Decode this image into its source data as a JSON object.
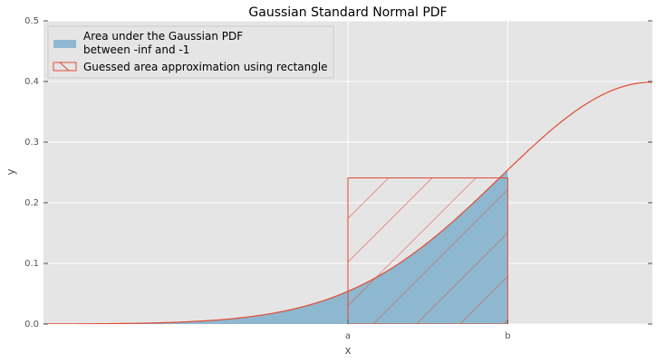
{
  "chart_data": {
    "type": "area",
    "title": "Gaussian Standard Normal PDF",
    "xlabel": "x",
    "ylabel": "y",
    "xlim": [
      -4,
      0
    ],
    "ylim": [
      0,
      0.5
    ],
    "yticks": [
      "0.0",
      "0.1",
      "0.2",
      "0.3",
      "0.4",
      "0.5"
    ],
    "xticks": [
      {
        "value": -2.0,
        "label": "a"
      },
      {
        "value": -0.95,
        "label": "b"
      }
    ],
    "grid": true,
    "legend_position": "top-left",
    "series": [
      {
        "name": "",
        "kind": "line",
        "function": "standard_normal_pdf",
        "x_range": [
          -4,
          0
        ],
        "color": "#e24a33"
      },
      {
        "name": "Area under the Gaussian PDF\nbetween -inf and -1",
        "kind": "fill",
        "fill_between": [
          -4,
          -0.95
        ],
        "color": "#8eb8d0"
      },
      {
        "name": "Guessed area approximation using rectangle",
        "kind": "hatched-rectangle",
        "x_range": [
          -2.0,
          -0.95
        ],
        "height": 0.241,
        "color": "#e24a33"
      }
    ],
    "legend": {
      "entries": [
        "Area under the Gaussian PDF",
        "between -inf and -1",
        "Guessed area approximation using rectangle"
      ]
    }
  },
  "colors": {
    "plot_bg": "#e5e5e5",
    "grid": "#ffffff",
    "curve": "#e24a33",
    "fill": "#8eb8d0"
  }
}
